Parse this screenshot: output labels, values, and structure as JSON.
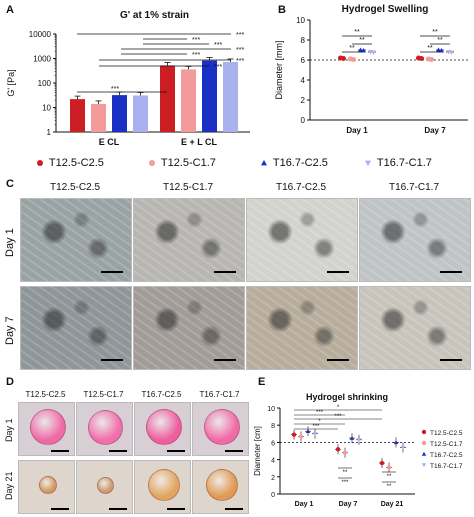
{
  "panels": {
    "A": {
      "letter": "A",
      "title": "G' at 1% strain",
      "ylabel": "G' [Pa]",
      "yticks": [
        "1",
        "10",
        "100",
        "1000",
        "10000"
      ],
      "groups": [
        "E CL",
        "E + L CL"
      ],
      "sig": "***"
    },
    "B": {
      "letter": "B",
      "title": "Hydrogel Swelling",
      "ylabel": "Diameter [mm]",
      "yticks": [
        "0",
        "2",
        "4",
        "6",
        "8",
        "10"
      ],
      "groups": [
        "Day 1",
        "Day 7"
      ],
      "sig": "**"
    },
    "C": {
      "letter": "C",
      "columns": [
        "T12.5-C2.5",
        "T12.5-C1.7",
        "T16.7-C2.5",
        "T16.7-C1.7"
      ],
      "rows": [
        "Day 1",
        "Day 7"
      ]
    },
    "D": {
      "letter": "D",
      "columns": [
        "T12.5-C2.5",
        "T12.5-C1.7",
        "T16.7-C2.5",
        "T16.7-C1.7"
      ],
      "rows": [
        "Day 1",
        "Day 21"
      ]
    },
    "E": {
      "letter": "E",
      "title": "Hydrogel shrinking",
      "ylabel": "Diameter [cm]",
      "yticks": [
        "0",
        "2",
        "4",
        "6",
        "8",
        "10"
      ],
      "groups": [
        "Day 1",
        "Day 7",
        "Day 21"
      ],
      "legend": [
        "T12.5-C2.5",
        "T12.5-C1.7",
        "T16.7-C2.5",
        "T16.7-C1.7"
      ],
      "sig3": "***",
      "sig2": "**",
      "sig1": "*"
    }
  },
  "legend": [
    {
      "label": "T12.5-C2.5",
      "color": "#cc1f24",
      "marker": "circle"
    },
    {
      "label": "T12.5-C1.7",
      "color": "#f39a9a",
      "marker": "circle"
    },
    {
      "label": "T16.7-C2.5",
      "color": "#1a2fc4",
      "marker": "triangle-up"
    },
    {
      "label": "T16.7-C1.7",
      "color": "#a9b2ef",
      "marker": "triangle-down"
    }
  ],
  "chart_data": [
    {
      "type": "bar",
      "title": "G' at 1% strain",
      "ylabel": "G' [Pa]",
      "yscale": "log",
      "ylim": [
        1,
        10000
      ],
      "categories": [
        "E CL",
        "E + L CL"
      ],
      "series": [
        {
          "name": "T12.5-C2.5",
          "values": [
            22,
            520
          ]
        },
        {
          "name": "T12.5-C1.7",
          "values": [
            14,
            360
          ]
        },
        {
          "name": "T16.7-C2.5",
          "values": [
            32,
            820
          ]
        },
        {
          "name": "T16.7-C1.7",
          "values": [
            31,
            720
          ]
        }
      ]
    },
    {
      "type": "scatter",
      "title": "Hydrogel Swelling",
      "ylabel": "Diameter [mm]",
      "ylim": [
        0,
        10
      ],
      "categories": [
        "Day 1",
        "Day 7"
      ],
      "reference_line": 6,
      "series": [
        {
          "name": "T12.5-C2.5",
          "values": [
            6.2,
            6.2
          ]
        },
        {
          "name": "T12.5-C1.7",
          "values": [
            6.1,
            6.1
          ]
        },
        {
          "name": "T16.7-C2.5",
          "values": [
            7.0,
            7.0
          ]
        },
        {
          "name": "T16.7-C1.7",
          "values": [
            6.8,
            6.8
          ]
        }
      ]
    },
    {
      "type": "scatter",
      "title": "Hydrogel shrinking",
      "ylabel": "Diameter [cm]",
      "ylim": [
        0,
        10
      ],
      "categories": [
        "Day 1",
        "Day 7",
        "Day 21"
      ],
      "reference_line": 6,
      "series": [
        {
          "name": "T12.5-C2.5",
          "values": [
            6.9,
            5.2,
            3.6
          ]
        },
        {
          "name": "T12.5-C1.7",
          "values": [
            6.7,
            4.8,
            3.1
          ]
        },
        {
          "name": "T16.7-C2.5",
          "values": [
            7.3,
            6.5,
            6.0
          ]
        },
        {
          "name": "T16.7-C1.7",
          "values": [
            7.0,
            6.3,
            5.4
          ]
        }
      ]
    }
  ]
}
